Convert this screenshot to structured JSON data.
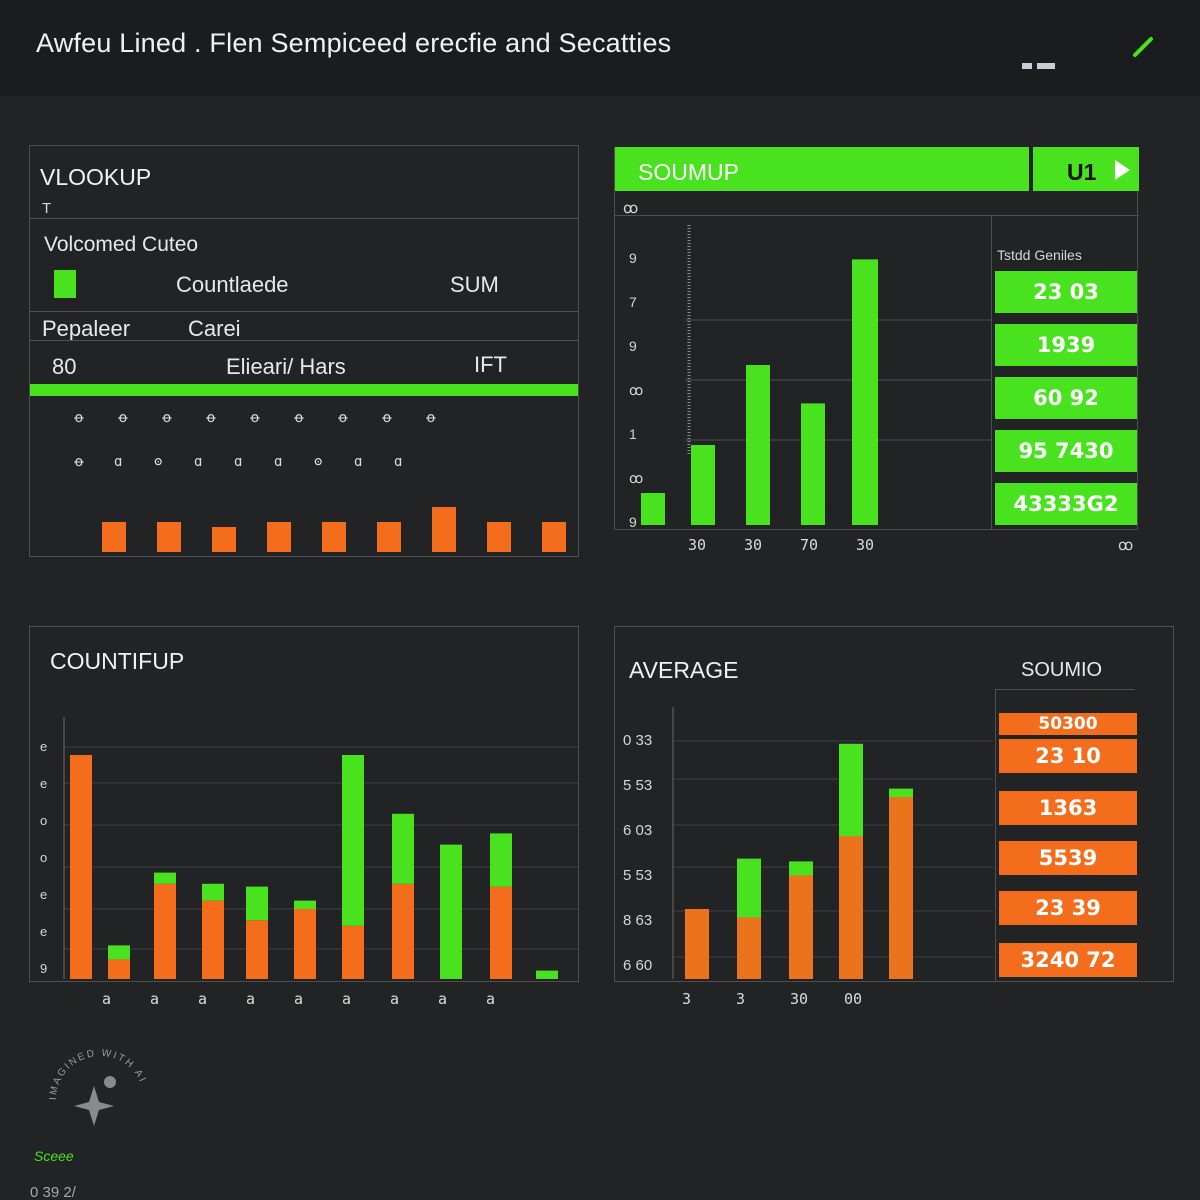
{
  "app": {
    "title": "Awfeu Lined . Flen Sempiceed erecfie and Secatties",
    "window_icon": "window-controls-icon",
    "edit_icon": "pencil-icon"
  },
  "vlookup": {
    "title": "VLOOKUP",
    "sub": "T",
    "subtitle": "Volcomed Cuteo",
    "row1_label": "Countlaede",
    "row1_value": "SUM",
    "row2_label": "Pepaleer",
    "row2_value": "Carei",
    "row3_a": "80",
    "row3_b": "Elieari/ Hars",
    "row3_c": "IFT",
    "glyphs_row1": [
      "ꝋ",
      "ꝋ",
      "ꝋ",
      "ꝋ",
      "ꝋ",
      "ꝋ",
      "ꝋ",
      "ꝋ",
      "ꝋ"
    ],
    "glyphs_row2": [
      "ꝋ",
      "ɑ",
      "ʘ",
      "ɑ",
      "ɑ",
      "ɑ",
      "ʘ",
      "ɑ",
      "ɑ"
    ],
    "bar_values": [
      3,
      3,
      2.5,
      3,
      3,
      3,
      4.5,
      3,
      3
    ]
  },
  "soumup": {
    "title": "SOUMUP",
    "tab_label": "U1",
    "sub": "ꝏ",
    "list_header": "Tstdd Geniles",
    "values": [
      "23 03",
      "1939",
      "60 92",
      "95 7430",
      "43333G2"
    ],
    "ytick_labels": [
      "9",
      "7",
      "9",
      "ꝏ",
      "1",
      "ꝏ",
      "9"
    ],
    "xtick_labels": [
      "30",
      "30",
      "70",
      "30"
    ],
    "corner_label": "ꝏ",
    "bar_values": [
      1,
      2.5,
      5,
      3.8,
      8.3
    ]
  },
  "countifup": {
    "title": "COUNTIFUP",
    "ytick_labels": [
      "e",
      "e",
      "o",
      "o",
      "e",
      "e",
      "9"
    ],
    "xtick_labels": [
      "a",
      "a",
      "a",
      "a",
      "a",
      "a",
      "a",
      "a",
      "a"
    ],
    "series": [
      {
        "name": "orange",
        "values": [
          8,
          0.7,
          3.4,
          2.8,
          2.1,
          2.5,
          1.9,
          3.4,
          0,
          3.3,
          0
        ]
      },
      {
        "name": "green",
        "values": [
          0,
          0.5,
          0.4,
          0.6,
          1.2,
          0.3,
          6.1,
          2.5,
          4.8,
          1.9,
          0.3
        ]
      }
    ]
  },
  "average": {
    "title": "AVERAGE",
    "side_title": "SOUMIO",
    "values": [
      "50300",
      "23 10",
      "1363",
      "5539",
      "23 39",
      "3240 72"
    ],
    "ytick_labels": [
      "0 33",
      "5 53",
      "6 03",
      "5 53",
      "8 63",
      "6 60"
    ],
    "xtick_labels": [
      "3",
      "3",
      "30",
      "00"
    ],
    "series": [
      {
        "name": "orange",
        "values": [
          2.5,
          2.2,
          3.7,
          5.1,
          6.5
        ]
      },
      {
        "name": "green",
        "values": [
          2.5,
          4.3,
          4.2,
          8.4,
          6.8
        ]
      }
    ]
  },
  "watermark": {
    "text": "IMAGINED WITH AI",
    "caption": "Sceee",
    "icon": "sparkle-icon"
  },
  "footer": {
    "text": "0 39 2/"
  },
  "colors": {
    "green": "#49e21e",
    "orange": "#f36d1c",
    "bg": "#222325",
    "panel_border": "#4d4f52"
  }
}
